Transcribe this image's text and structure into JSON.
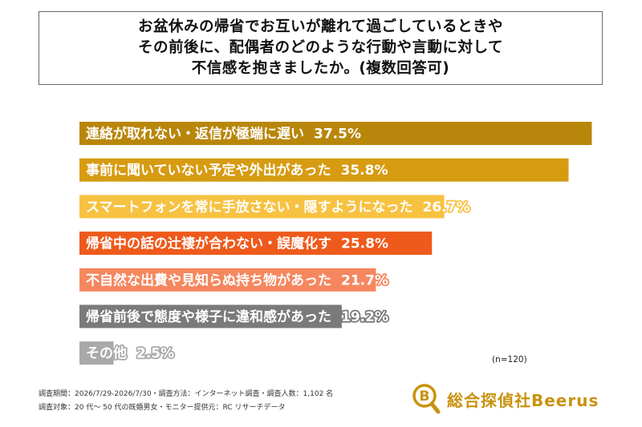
{
  "chart_data": {
    "type": "bar",
    "orientation": "horizontal",
    "title_lines": [
      "お盆休みの帰省でお互いが離れて過ごしているときや",
      "その前後に、配偶者のどのような行動や言動に対して",
      "不信感を抱きましたか。(複数回答可)"
    ],
    "categories": [
      "連絡が取れない・返信が極端に遅い",
      "事前に聞いていない予定や外出があった",
      "スマートフォンを常に手放さない・隠すようになった",
      "帰省中の話の辻褄が合わない・誤魔化す",
      "不自然な出費や見知らぬ持ち物があった",
      "帰省前後で態度や様子に違和感があった",
      "その他"
    ],
    "values": [
      37.5,
      35.8,
      26.7,
      25.8,
      21.7,
      19.2,
      2.5
    ],
    "value_labels": [
      "37.5%",
      "35.8%",
      "26.7%",
      "25.8%",
      "21.7%",
      "19.2%",
      "2.5%"
    ],
    "colors": [
      "#b8860b",
      "#d79b12",
      "#f7c242",
      "#ee5a1c",
      "#f5875f",
      "#7a7a7a",
      "#a9a9a9"
    ],
    "xlim": [
      0,
      40
    ],
    "grid": false,
    "sample_note": "(n=120)"
  },
  "footer": {
    "line1": "調査期間：2026/7/29-2026/7/30・調査方法：インターネット調査・調査人数：1,102 名",
    "line2": "調査対象：20 代～ 50 代の既婚男女・モニター提供元：RC リサーチデータ"
  },
  "logo": {
    "text": "総合探偵社Beerus",
    "mark_letter": "B",
    "color": "#c9920d",
    "icon": "magnifier-logo-icon"
  }
}
